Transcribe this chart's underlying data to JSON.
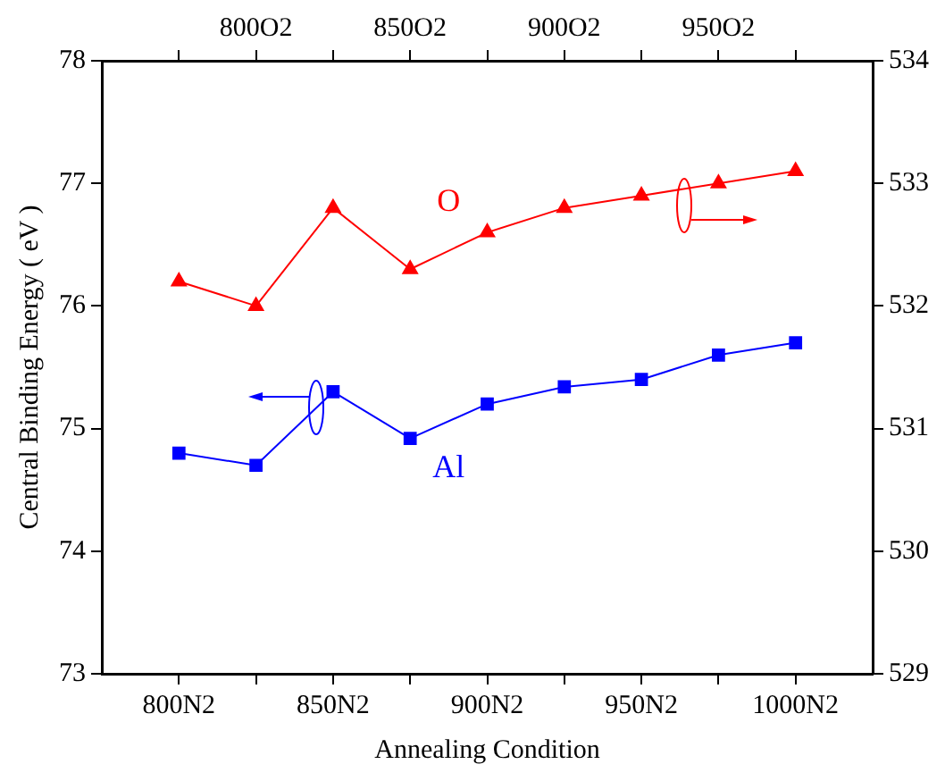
{
  "chart_data": {
    "type": "line",
    "xlabel": "Annealing Condition",
    "ylabel": "Central Binding Energy ( eV )",
    "categories": [
      "800N2",
      "800O2",
      "850N2",
      "850O2",
      "900N2",
      "900O2",
      "950N2",
      "950O2",
      "1000N2"
    ],
    "ylim": [
      73,
      78
    ],
    "yticks": [
      73,
      74,
      75,
      76,
      77,
      78
    ],
    "y2lim": [
      529,
      534
    ],
    "y2ticks": [
      529,
      530,
      531,
      532,
      533,
      534
    ],
    "series": [
      {
        "name": "O",
        "color": "#ff0000",
        "axis": "y2",
        "marker": "triangle",
        "values": [
          532.2,
          532.0,
          532.8,
          532.3,
          532.6,
          532.8,
          532.9,
          533.0,
          533.1
        ]
      },
      {
        "name": "Al",
        "color": "#0000ff",
        "axis": "y",
        "marker": "square",
        "values": [
          74.8,
          74.7,
          75.3,
          74.92,
          75.2,
          75.34,
          75.4,
          75.6,
          75.7
        ]
      }
    ],
    "legend": false,
    "grid": false,
    "line_style": "solid"
  }
}
